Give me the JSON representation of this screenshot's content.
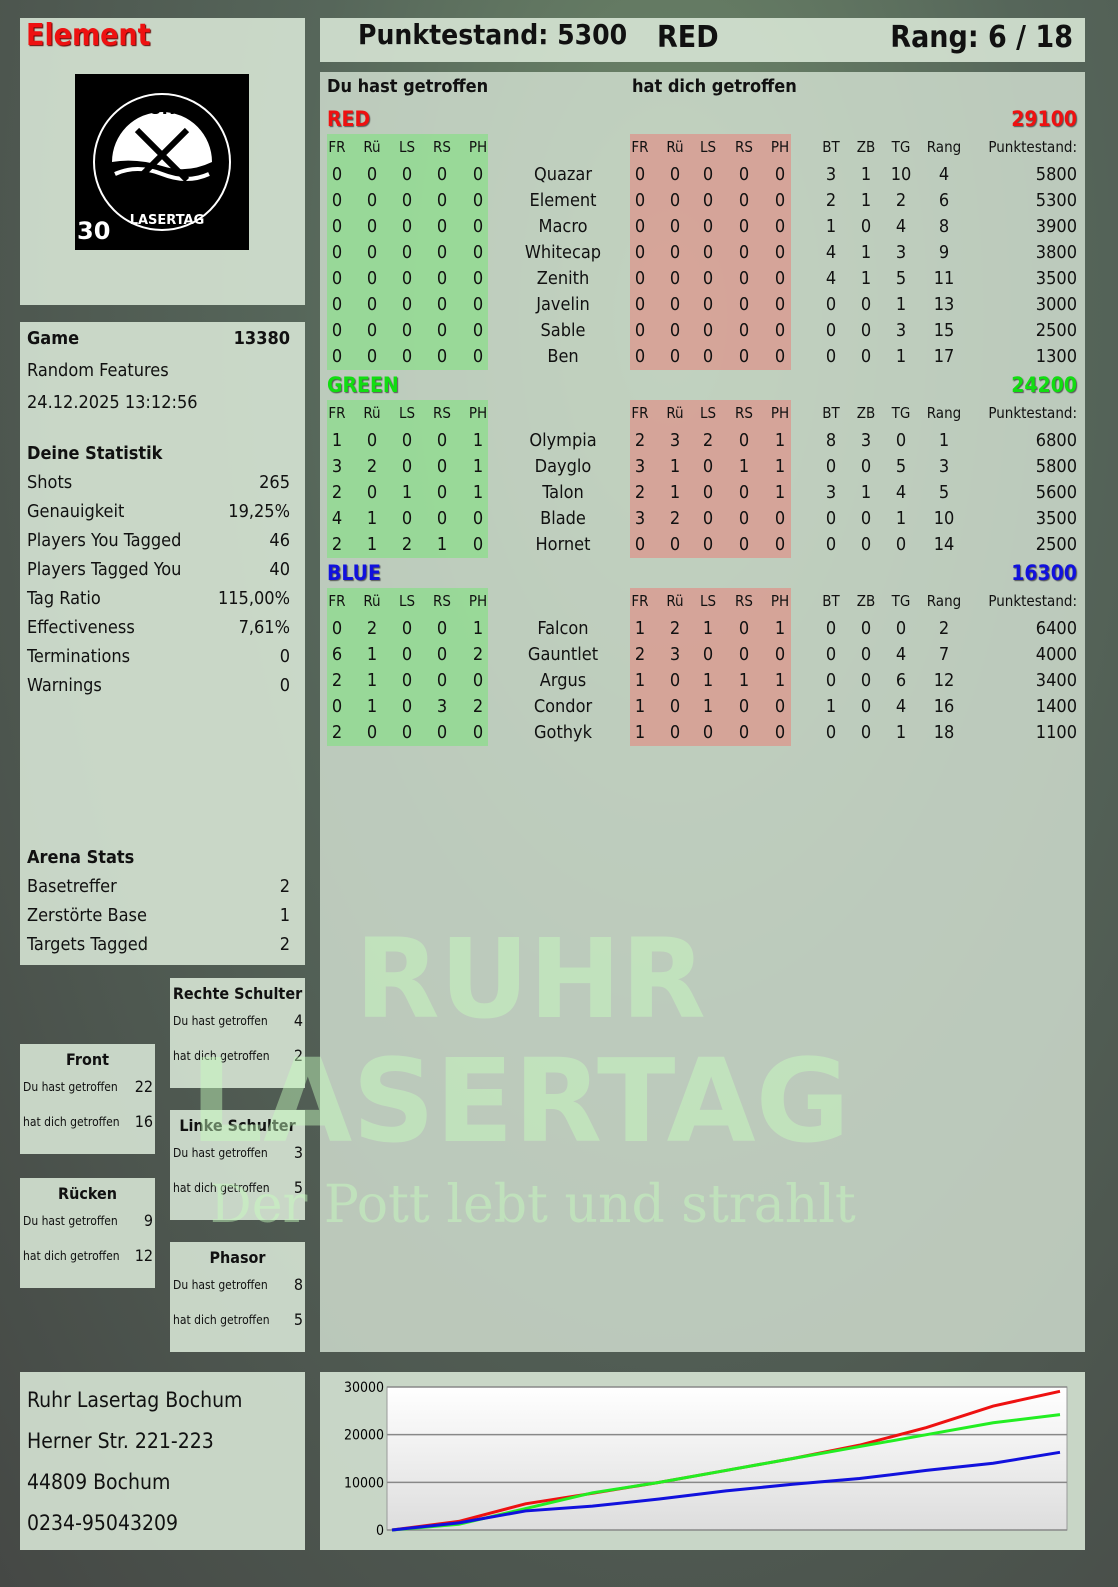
{
  "header": {
    "player": "Element",
    "score_label": "Punktestand: 5300",
    "team": "RED",
    "rank_label": "Rang: 6 / 18"
  },
  "logo": {
    "top": "RUHR",
    "bottom": "LASERTAG",
    "badge": "30"
  },
  "watermark": {
    "line1": "RUHR",
    "line2": "LASERTAG",
    "tagline": "Der Pott lebt und strahlt"
  },
  "game": {
    "label": "Game",
    "id": "13380",
    "mode": "Random Features",
    "datetime": "24.12.2025 13:12:56"
  },
  "stats": {
    "title": "Deine Statistik",
    "items": [
      {
        "label": "Shots",
        "value": "265"
      },
      {
        "label": "Genauigkeit",
        "value": "19,25%"
      },
      {
        "label": "Players You Tagged",
        "value": "46"
      },
      {
        "label": "Players Tagged You",
        "value": "40"
      },
      {
        "label": "Tag Ratio",
        "value": "115,00%"
      },
      {
        "label": "Effectiveness",
        "value": "7,61%"
      },
      {
        "label": "Terminations",
        "value": "0"
      },
      {
        "label": "Warnings",
        "value": "0"
      }
    ]
  },
  "arena": {
    "title": "Arena Stats",
    "items": [
      {
        "label": "Basetreffer",
        "value": "2"
      },
      {
        "label": "Zerstörte Base",
        "value": "1"
      },
      {
        "label": "Targets Tagged",
        "value": "2"
      }
    ]
  },
  "zones": [
    {
      "name": "Rechte Schulter",
      "hit": "4",
      "got": "2"
    },
    {
      "name": "Front",
      "hit": "22",
      "got": "16"
    },
    {
      "name": "Linke Schulter",
      "hit": "3",
      "got": "5"
    },
    {
      "name": "Rücken",
      "hit": "9",
      "got": "12"
    },
    {
      "name": "Phasor",
      "hit": "8",
      "got": "5"
    }
  ],
  "zone_labels": {
    "hit": "Du hast getroffen",
    "got": "hat dich getroffen"
  },
  "table": {
    "you_hit": "Du hast getroffen",
    "hit_you": "hat dich getroffen",
    "hit_cols": [
      "FR",
      "Rü",
      "LS",
      "RS",
      "PH"
    ],
    "stat_cols": [
      "BT",
      "ZB",
      "TG",
      "Rang",
      "Punktestand:"
    ],
    "teams": [
      {
        "name": "RED",
        "total": "29100",
        "color": "#ee1111",
        "players": [
          {
            "n": "Quazar",
            "h": [
              0,
              0,
              0,
              0,
              0
            ],
            "g": [
              0,
              0,
              0,
              0,
              0
            ],
            "s": [
              3,
              1,
              10,
              4,
              5800
            ]
          },
          {
            "n": "Element",
            "h": [
              0,
              0,
              0,
              0,
              0
            ],
            "g": [
              0,
              0,
              0,
              0,
              0
            ],
            "s": [
              2,
              1,
              2,
              6,
              5300
            ]
          },
          {
            "n": "Macro",
            "h": [
              0,
              0,
              0,
              0,
              0
            ],
            "g": [
              0,
              0,
              0,
              0,
              0
            ],
            "s": [
              1,
              0,
              4,
              8,
              3900
            ]
          },
          {
            "n": "Whitecap",
            "h": [
              0,
              0,
              0,
              0,
              0
            ],
            "g": [
              0,
              0,
              0,
              0,
              0
            ],
            "s": [
              4,
              1,
              3,
              9,
              3800
            ]
          },
          {
            "n": "Zenith",
            "h": [
              0,
              0,
              0,
              0,
              0
            ],
            "g": [
              0,
              0,
              0,
              0,
              0
            ],
            "s": [
              4,
              1,
              5,
              11,
              3500
            ]
          },
          {
            "n": "Javelin",
            "h": [
              0,
              0,
              0,
              0,
              0
            ],
            "g": [
              0,
              0,
              0,
              0,
              0
            ],
            "s": [
              0,
              0,
              1,
              13,
              3000
            ]
          },
          {
            "n": "Sable",
            "h": [
              0,
              0,
              0,
              0,
              0
            ],
            "g": [
              0,
              0,
              0,
              0,
              0
            ],
            "s": [
              0,
              0,
              3,
              15,
              2500
            ]
          },
          {
            "n": "Ben",
            "h": [
              0,
              0,
              0,
              0,
              0
            ],
            "g": [
              0,
              0,
              0,
              0,
              0
            ],
            "s": [
              0,
              0,
              1,
              17,
              1300
            ]
          }
        ]
      },
      {
        "name": "GREEN",
        "total": "24200",
        "color": "#11dd11",
        "players": [
          {
            "n": "Olympia",
            "h": [
              1,
              0,
              0,
              0,
              1
            ],
            "g": [
              2,
              3,
              2,
              0,
              1
            ],
            "s": [
              8,
              3,
              0,
              1,
              6800
            ]
          },
          {
            "n": "Dayglo",
            "h": [
              3,
              2,
              0,
              0,
              1
            ],
            "g": [
              3,
              1,
              0,
              1,
              1
            ],
            "s": [
              0,
              0,
              5,
              3,
              5800
            ]
          },
          {
            "n": "Talon",
            "h": [
              2,
              0,
              1,
              0,
              1
            ],
            "g": [
              2,
              1,
              0,
              0,
              1
            ],
            "s": [
              3,
              1,
              4,
              5,
              5600
            ]
          },
          {
            "n": "Blade",
            "h": [
              4,
              1,
              0,
              0,
              0
            ],
            "g": [
              3,
              2,
              0,
              0,
              0
            ],
            "s": [
              0,
              0,
              1,
              10,
              3500
            ]
          },
          {
            "n": "Hornet",
            "h": [
              2,
              1,
              2,
              1,
              0
            ],
            "g": [
              0,
              0,
              0,
              0,
              0
            ],
            "s": [
              0,
              0,
              0,
              14,
              2500
            ]
          }
        ]
      },
      {
        "name": "BLUE",
        "total": "16300",
        "color": "#1111dd",
        "players": [
          {
            "n": "Falcon",
            "h": [
              0,
              2,
              0,
              0,
              1
            ],
            "g": [
              1,
              2,
              1,
              0,
              1
            ],
            "s": [
              0,
              0,
              0,
              2,
              6400
            ]
          },
          {
            "n": "Gauntlet",
            "h": [
              6,
              1,
              0,
              0,
              2
            ],
            "g": [
              2,
              3,
              0,
              0,
              0
            ],
            "s": [
              0,
              0,
              4,
              7,
              4000
            ]
          },
          {
            "n": "Argus",
            "h": [
              2,
              1,
              0,
              0,
              0
            ],
            "g": [
              1,
              0,
              1,
              1,
              1
            ],
            "s": [
              0,
              0,
              6,
              12,
              3400
            ]
          },
          {
            "n": "Condor",
            "h": [
              0,
              1,
              0,
              3,
              2
            ],
            "g": [
              1,
              0,
              1,
              0,
              0
            ],
            "s": [
              1,
              0,
              4,
              16,
              1400
            ]
          },
          {
            "n": "Gothyk",
            "h": [
              2,
              0,
              0,
              0,
              0
            ],
            "g": [
              1,
              0,
              0,
              0,
              0
            ],
            "s": [
              0,
              0,
              1,
              18,
              1100
            ]
          }
        ]
      }
    ]
  },
  "address": {
    "name": "Ruhr Lasertag Bochum",
    "street": "Herner Str. 221-223",
    "city": "44809 Bochum",
    "phone": "0234-95043209"
  },
  "chart_data": {
    "type": "line",
    "ylim": [
      0,
      30000
    ],
    "yticks": [
      "0",
      "10000",
      "20000",
      "30000"
    ],
    "grid": true,
    "x": [
      0,
      1,
      2,
      3,
      4,
      5,
      6,
      7,
      8,
      9,
      10
    ],
    "series": [
      {
        "color": "#ee1111",
        "values": [
          0,
          1800,
          5500,
          7700,
          10000,
          12500,
          15000,
          17800,
          21500,
          26000,
          29100
        ]
      },
      {
        "color": "#22ee22",
        "values": [
          0,
          1200,
          4500,
          7800,
          10000,
          12500,
          15000,
          17500,
          20000,
          22500,
          24200
        ]
      },
      {
        "color": "#1111dd",
        "values": [
          0,
          1500,
          4000,
          5000,
          6500,
          8200,
          9600,
          10800,
          12500,
          14000,
          16300
        ]
      }
    ]
  }
}
